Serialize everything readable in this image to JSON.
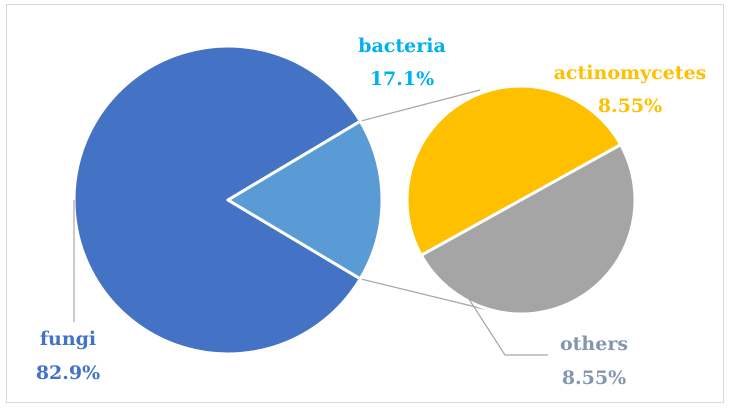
{
  "chart_data": {
    "type": "pie",
    "subtype": "pie-of-pie",
    "title": "",
    "main_pie": [
      {
        "label": "fungi",
        "value": 82.9,
        "value_label": "82.9%",
        "color": "#4472C4"
      },
      {
        "label": "bacteria",
        "value": 17.1,
        "value_label": "17.1%",
        "color": "#5B9BD5"
      }
    ],
    "breakout_of": "bacteria",
    "secondary_pie": [
      {
        "label": "actinomycetes",
        "value": 8.55,
        "value_label": "8.55%",
        "color": "#FFC000"
      },
      {
        "label": "others",
        "value": 8.55,
        "value_label": "8.55%",
        "color": "#A5A5A5"
      }
    ],
    "label_colors": {
      "fungi": "#4472C4",
      "bacteria": "#00B0F0",
      "actinomycetes": "#FFC000",
      "others": "#8497B0"
    },
    "legend": "none",
    "grid": false
  }
}
